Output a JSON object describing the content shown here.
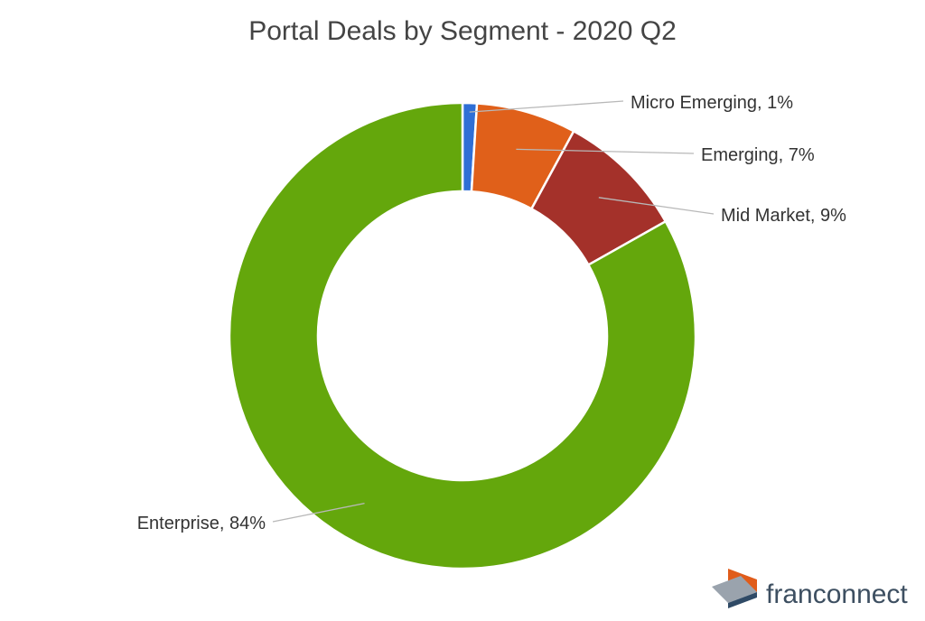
{
  "chart_data": {
    "type": "pie",
    "title": "Portal Deals by Segment - 2020 Q2",
    "donut": true,
    "legend": "none (data labels with leader lines)",
    "slices": [
      {
        "label": "Micro Emerging",
        "value": 1,
        "display": "Micro Emerging, 1%",
        "color": "#2f6fd6"
      },
      {
        "label": "Emerging",
        "value": 7,
        "display": "Emerging, 7%",
        "color": "#e0601a"
      },
      {
        "label": "Mid Market",
        "value": 9,
        "display": "Mid Market, 9%",
        "color": "#a4312a"
      },
      {
        "label": "Enterprise",
        "value": 84,
        "display": "Enterprise, 84%",
        "color": "#64a70c"
      }
    ]
  },
  "brand": {
    "name": "franconnect",
    "logo_colors": {
      "orange": "#e05c1a",
      "grey": "#9aa3ad",
      "navy": "#2f4a66"
    }
  }
}
